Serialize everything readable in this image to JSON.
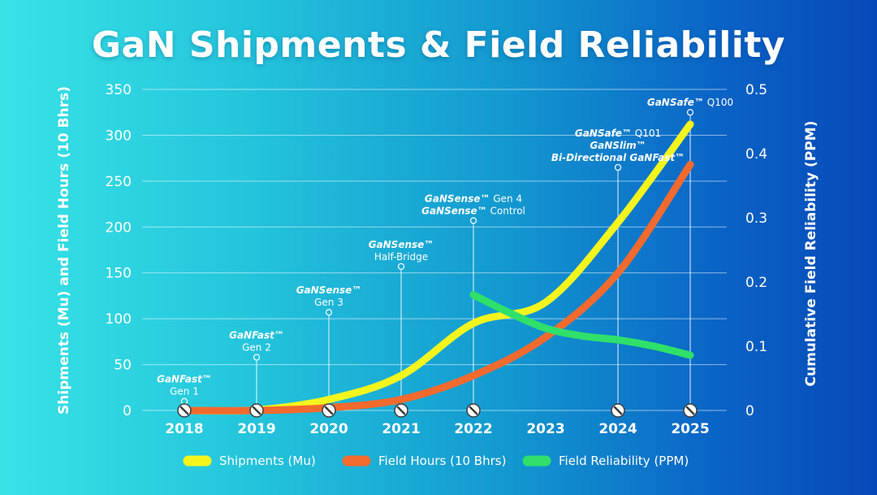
{
  "chart_data": {
    "type": "line",
    "title": "GaN Shipments & Field Reliability",
    "ylabel": "Shipments (Mu) and Field Hours (10 Bhrs)",
    "y2label": "Cumulative Field Reliability (PPM)",
    "x_ticks": [
      "2018",
      "2019",
      "2020",
      "2021",
      "2022",
      "2023",
      "2024",
      "2025"
    ],
    "ylim": [
      0,
      350
    ],
    "y_ticks": [
      "0",
      "50",
      "100",
      "150",
      "200",
      "250",
      "300",
      "350"
    ],
    "y2lim": [
      0,
      0.5
    ],
    "y2_ticks": [
      "0",
      "0.1",
      "0.2",
      "0.3",
      "0.4",
      "0.5"
    ],
    "grid": true,
    "legend_position": "bottom",
    "series": [
      {
        "name": "Shipments (Mu)",
        "axis": "left",
        "color": "#f5f51e",
        "points": [
          [
            2018,
            0
          ],
          [
            2019,
            0.5
          ],
          [
            2020,
            12
          ],
          [
            2021,
            38
          ],
          [
            2022,
            95
          ],
          [
            2023,
            118
          ],
          [
            2024,
            205
          ],
          [
            2025,
            312
          ]
        ]
      },
      {
        "name": "Field Hours (10 Bhrs)",
        "axis": "left",
        "color": "#f26a2e",
        "points": [
          [
            2018,
            0
          ],
          [
            2019,
            0
          ],
          [
            2020,
            3
          ],
          [
            2021,
            12
          ],
          [
            2022,
            38
          ],
          [
            2023,
            80
          ],
          [
            2024,
            150
          ],
          [
            2025,
            268
          ]
        ]
      },
      {
        "name": "Field Reliability (PPM)",
        "axis": "right",
        "color": "#2fe06a",
        "points": [
          [
            2022,
            0.18
          ],
          [
            2022.5,
            0.152
          ],
          [
            2023,
            0.128
          ],
          [
            2023.5,
            0.116
          ],
          [
            2024,
            0.11
          ],
          [
            2024.5,
            0.1
          ],
          [
            2025,
            0.086
          ]
        ]
      }
    ],
    "annotations": [
      {
        "x": 2018,
        "top": 10,
        "lines": [
          [
            "GaNFast™",
            ""
          ],
          [
            "",
            "Gen 1"
          ]
        ]
      },
      {
        "x": 2019,
        "top": 58,
        "lines": [
          [
            "GaNFast™",
            ""
          ],
          [
            "",
            "Gen 2"
          ]
        ]
      },
      {
        "x": 2020,
        "top": 107,
        "lines": [
          [
            "GaNSense™",
            ""
          ],
          [
            "",
            "Gen 3"
          ]
        ]
      },
      {
        "x": 2021,
        "top": 157,
        "lines": [
          [
            "GaNSense™",
            ""
          ],
          [
            "",
            "Half-Bridge"
          ]
        ]
      },
      {
        "x": 2022,
        "top": 207,
        "lines": [
          [
            "GaNSense™",
            " Gen 4"
          ],
          [
            "GaNSense™",
            " Control"
          ]
        ]
      },
      {
        "x": 2024,
        "top": 265,
        "lines": [
          [
            "GaNSafe™",
            " Q101"
          ],
          [
            "GaNSlim™",
            ""
          ],
          [
            "Bi-Directional GaNFast™",
            ""
          ]
        ]
      },
      {
        "x": 2025,
        "top": 325,
        "lines": [
          [
            "GaNSafe™",
            " Q100"
          ]
        ]
      }
    ],
    "milestone_markers_at": [
      2018,
      2019,
      2020,
      2021,
      2022,
      2024,
      2025
    ]
  }
}
